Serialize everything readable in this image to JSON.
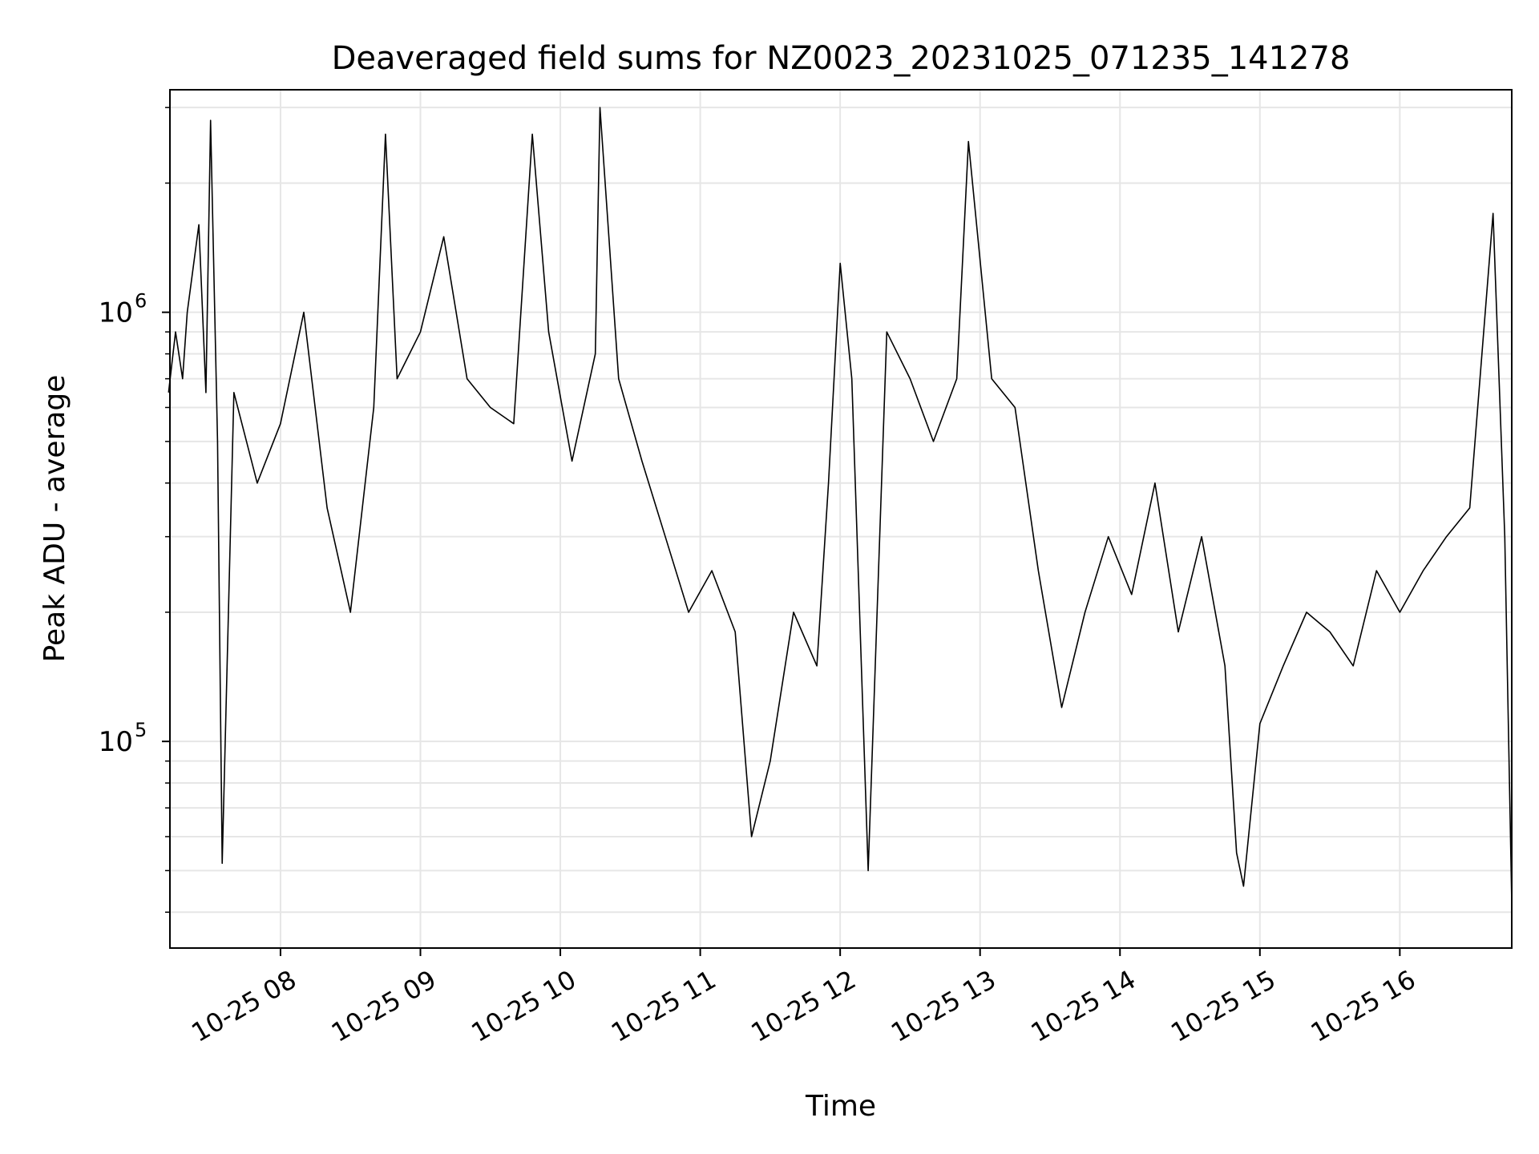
{
  "chart_data": {
    "type": "line",
    "title": "Deaveraged field sums for NZ0023_20231025_071235_141278",
    "xlabel": "Time",
    "ylabel": "Peak ADU - average",
    "x_ticks": [
      "10-25 08",
      "10-25 09",
      "10-25 10",
      "10-25 11",
      "10-25 12",
      "10-25 13",
      "10-25 14",
      "10-25 15",
      "10-25 16"
    ],
    "y_ticks": [
      {
        "base": "10",
        "exp": "5",
        "value": 100000
      },
      {
        "base": "10",
        "exp": "6",
        "value": 1000000
      }
    ],
    "xlim": [
      "2023-10-25 07:12:35",
      "2023-10-25 16:48:00"
    ],
    "ylim": [
      33000,
      3300000
    ],
    "yscale": "log",
    "grid": true,
    "line_color": "#000000",
    "series": [
      {
        "points": [
          [
            "2023-10-25 07:12",
            650000
          ],
          [
            "2023-10-25 07:15",
            900000
          ],
          [
            "2023-10-25 07:18",
            700000
          ],
          [
            "2023-10-25 07:20",
            1000000
          ],
          [
            "2023-10-25 07:25",
            1600000
          ],
          [
            "2023-10-25 07:28",
            650000
          ],
          [
            "2023-10-25 07:30",
            2800000
          ],
          [
            "2023-10-25 07:33",
            500000
          ],
          [
            "2023-10-25 07:35",
            52000
          ],
          [
            "2023-10-25 07:40",
            650000
          ],
          [
            "2023-10-25 07:50",
            400000
          ],
          [
            "2023-10-25 08:00",
            550000
          ],
          [
            "2023-10-25 08:10",
            1000000
          ],
          [
            "2023-10-25 08:20",
            350000
          ],
          [
            "2023-10-25 08:30",
            200000
          ],
          [
            "2023-10-25 08:40",
            600000
          ],
          [
            "2023-10-25 08:45",
            2600000
          ],
          [
            "2023-10-25 08:50",
            700000
          ],
          [
            "2023-10-25 09:00",
            900000
          ],
          [
            "2023-10-25 09:10",
            1500000
          ],
          [
            "2023-10-25 09:20",
            700000
          ],
          [
            "2023-10-25 09:30",
            600000
          ],
          [
            "2023-10-25 09:40",
            550000
          ],
          [
            "2023-10-25 09:48",
            2600000
          ],
          [
            "2023-10-25 09:55",
            900000
          ],
          [
            "2023-10-25 10:05",
            450000
          ],
          [
            "2023-10-25 10:15",
            800000
          ],
          [
            "2023-10-25 10:17",
            3000000
          ],
          [
            "2023-10-25 10:25",
            700000
          ],
          [
            "2023-10-25 10:35",
            450000
          ],
          [
            "2023-10-25 10:45",
            300000
          ],
          [
            "2023-10-25 10:55",
            200000
          ],
          [
            "2023-10-25 11:05",
            250000
          ],
          [
            "2023-10-25 11:15",
            180000
          ],
          [
            "2023-10-25 11:22",
            60000
          ],
          [
            "2023-10-25 11:30",
            90000
          ],
          [
            "2023-10-25 11:40",
            200000
          ],
          [
            "2023-10-25 11:50",
            150000
          ],
          [
            "2023-10-25 11:55",
            400000
          ],
          [
            "2023-10-25 12:00",
            1300000
          ],
          [
            "2023-10-25 12:05",
            700000
          ],
          [
            "2023-10-25 12:12",
            50000
          ],
          [
            "2023-10-25 12:20",
            900000
          ],
          [
            "2023-10-25 12:30",
            700000
          ],
          [
            "2023-10-25 12:40",
            500000
          ],
          [
            "2023-10-25 12:50",
            700000
          ],
          [
            "2023-10-25 12:55",
            2500000
          ],
          [
            "2023-10-25 13:05",
            700000
          ],
          [
            "2023-10-25 13:15",
            600000
          ],
          [
            "2023-10-25 13:25",
            250000
          ],
          [
            "2023-10-25 13:35",
            120000
          ],
          [
            "2023-10-25 13:45",
            200000
          ],
          [
            "2023-10-25 13:55",
            300000
          ],
          [
            "2023-10-25 14:05",
            220000
          ],
          [
            "2023-10-25 14:15",
            400000
          ],
          [
            "2023-10-25 14:25",
            180000
          ],
          [
            "2023-10-25 14:35",
            300000
          ],
          [
            "2023-10-25 14:45",
            150000
          ],
          [
            "2023-10-25 14:50",
            55000
          ],
          [
            "2023-10-25 14:53",
            46000
          ],
          [
            "2023-10-25 15:00",
            110000
          ],
          [
            "2023-10-25 15:10",
            150000
          ],
          [
            "2023-10-25 15:20",
            200000
          ],
          [
            "2023-10-25 15:30",
            180000
          ],
          [
            "2023-10-25 15:40",
            150000
          ],
          [
            "2023-10-25 15:50",
            250000
          ],
          [
            "2023-10-25 16:00",
            200000
          ],
          [
            "2023-10-25 16:10",
            250000
          ],
          [
            "2023-10-25 16:20",
            300000
          ],
          [
            "2023-10-25 16:30",
            350000
          ],
          [
            "2023-10-25 16:40",
            1700000
          ],
          [
            "2023-10-25 16:45",
            300000
          ],
          [
            "2023-10-25 16:48",
            42000
          ]
        ]
      }
    ]
  }
}
